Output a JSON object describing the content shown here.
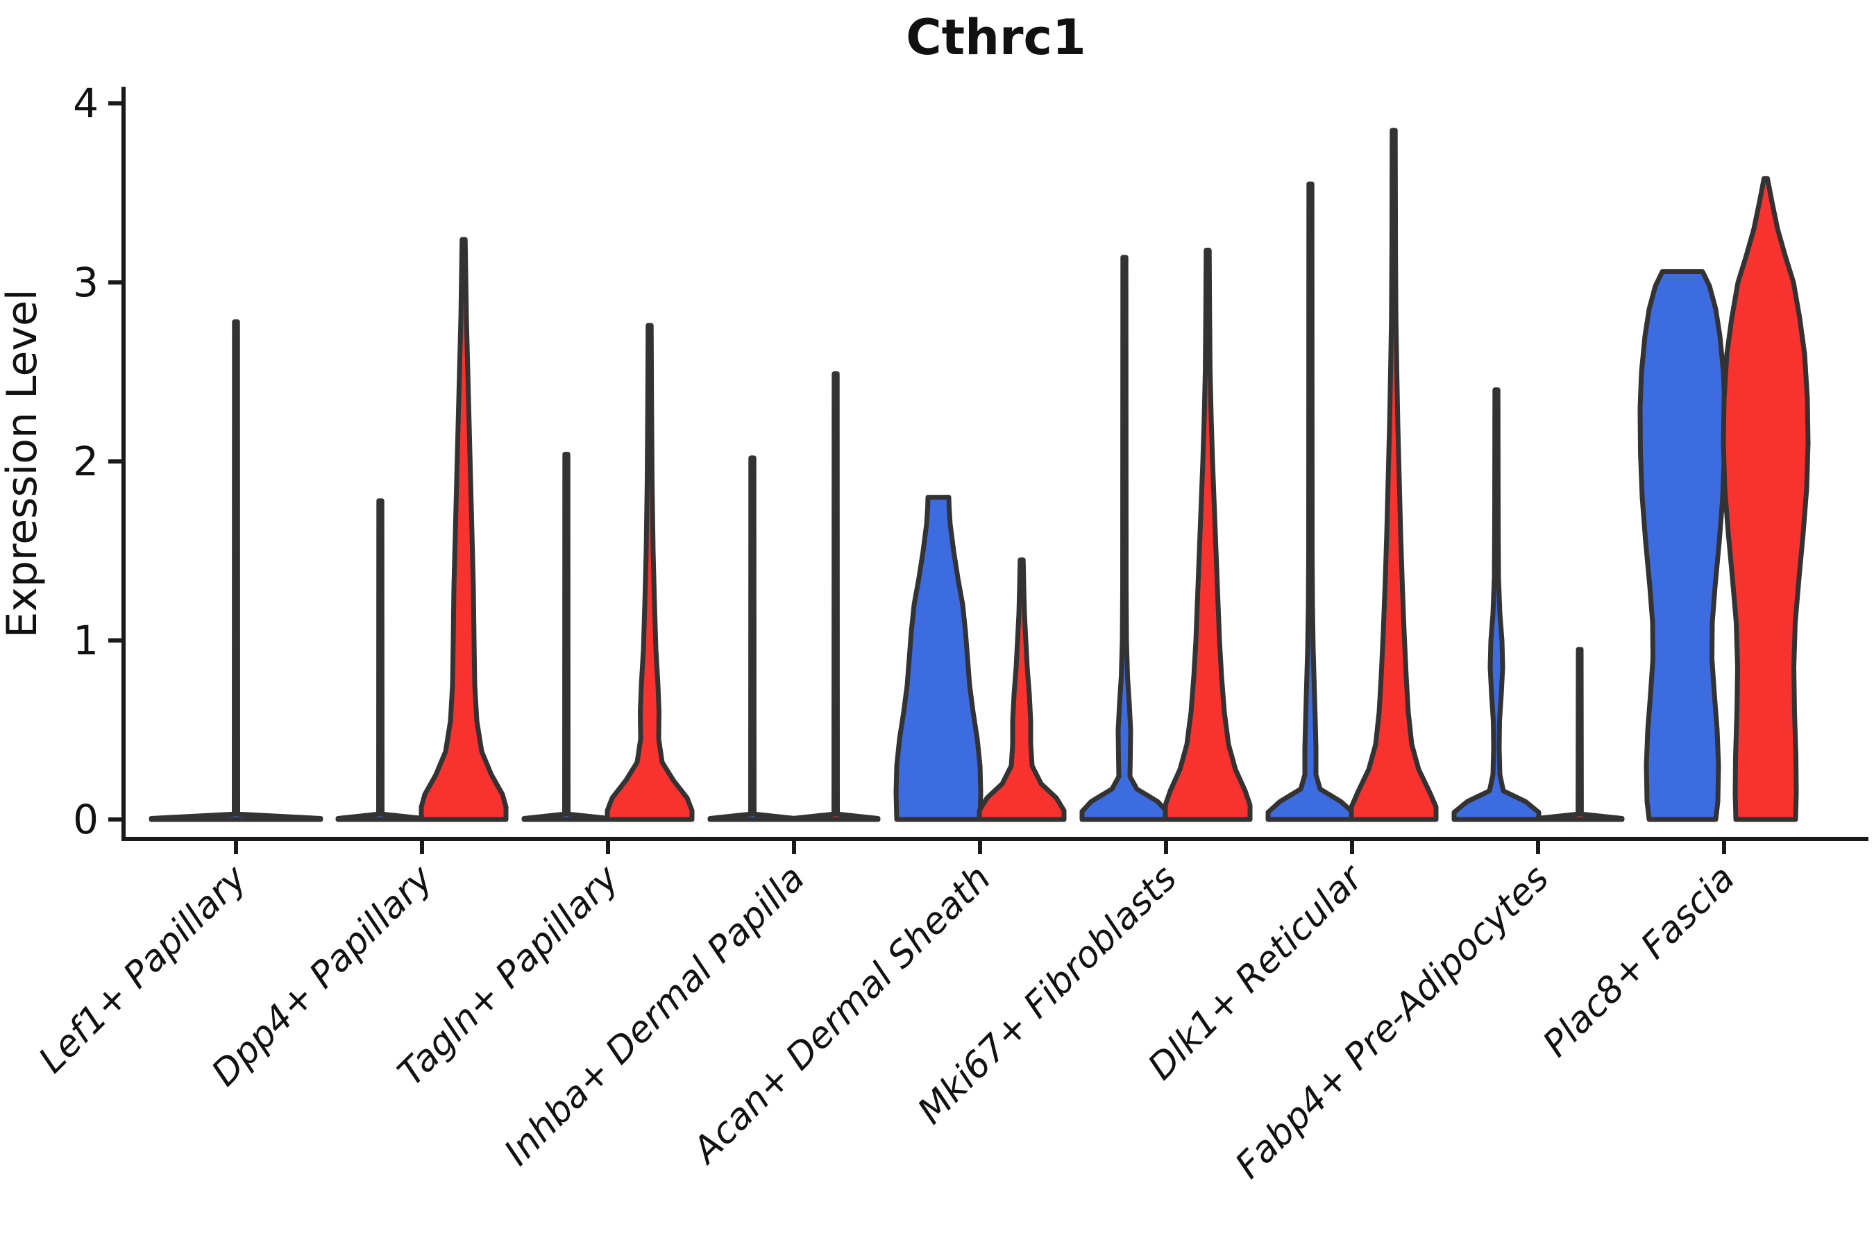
{
  "title": "Cthrc1",
  "ylabel": "Expression Level",
  "colors": {
    "blue": "#3D6BE0",
    "red": "#F8322E",
    "outline": "#333333",
    "axis": "#1a1a1a"
  },
  "axis": {
    "yticks": [
      "0",
      "1",
      "2",
      "3",
      "4"
    ],
    "ylim": [
      0,
      4
    ]
  },
  "chart_data": {
    "type": "violin",
    "title": "Cthrc1",
    "ylabel": "Expression Level",
    "ylim": [
      0,
      4
    ],
    "split_groups": [
      "blue",
      "red"
    ],
    "categories": [
      "Lef1+ Papillary",
      "Dpp4+ Papillary",
      "Tagln+ Papillary",
      "Inhba+ Dermal Papilla",
      "Acan+ Dermal Sheath",
      "Mki67+ Fibroblasts",
      "Dlk1+ Reticular",
      "Fabp4+ Pre-Adipocytes",
      "Plac8+ Fascia"
    ],
    "violins": [
      {
        "category": "Lef1+ Papillary",
        "blue": {
          "max": 2.78,
          "offset": 0,
          "profile": [
            [
              0,
              122
            ],
            [
              0.006,
              122
            ],
            [
              0.03,
              2.5
            ],
            [
              2.78,
              2.2
            ]
          ]
        },
        "red": {
          "kind": "none"
        }
      },
      {
        "category": "Dpp4+ Papillary",
        "blue": {
          "max": 1.78,
          "profile": [
            [
              0,
              61
            ],
            [
              0.006,
              61
            ],
            [
              0.03,
              2.5
            ],
            [
              1.78,
              2.2
            ]
          ]
        },
        "red": {
          "max": 3.24,
          "profile": [
            [
              0,
              61
            ],
            [
              0.07,
              61
            ],
            [
              0.14,
              56
            ],
            [
              0.25,
              40
            ],
            [
              0.38,
              26
            ],
            [
              0.55,
              19
            ],
            [
              0.75,
              16
            ],
            [
              1.0,
              15
            ],
            [
              1.3,
              14
            ],
            [
              1.6,
              12
            ],
            [
              1.9,
              10
            ],
            [
              2.2,
              8
            ],
            [
              2.5,
              6
            ],
            [
              2.8,
              4
            ],
            [
              3.05,
              3
            ],
            [
              3.24,
              2.2
            ]
          ]
        }
      },
      {
        "category": "Tagln+ Papillary",
        "blue": {
          "max": 2.04,
          "profile": [
            [
              0,
              61
            ],
            [
              0.006,
              61
            ],
            [
              0.03,
              2.5
            ],
            [
              2.04,
              2.2
            ]
          ]
        },
        "red": {
          "max": 2.76,
          "profile": [
            [
              0,
              61
            ],
            [
              0.05,
              61
            ],
            [
              0.12,
              54
            ],
            [
              0.22,
              34
            ],
            [
              0.32,
              18
            ],
            [
              0.45,
              13
            ],
            [
              0.6,
              13.5
            ],
            [
              0.75,
              12
            ],
            [
              0.95,
              9
            ],
            [
              1.2,
              7
            ],
            [
              1.5,
              5
            ],
            [
              1.9,
              3.5
            ],
            [
              2.3,
              2.8
            ],
            [
              2.76,
              2.2
            ]
          ]
        }
      },
      {
        "category": "Inhba+ Dermal Papilla",
        "blue": {
          "max": 2.02,
          "profile": [
            [
              0,
              61
            ],
            [
              0.006,
              61
            ],
            [
              0.03,
              2.5
            ],
            [
              2.02,
              2.2
            ]
          ]
        },
        "red": {
          "max": 2.49,
          "profile": [
            [
              0,
              61
            ],
            [
              0.006,
              61
            ],
            [
              0.03,
              2.5
            ],
            [
              2.49,
              2.2
            ]
          ]
        }
      },
      {
        "category": "Acan+ Dermal Sheath",
        "blue": {
          "max": 1.8,
          "profile": [
            [
              0,
              60
            ],
            [
              0.15,
              61
            ],
            [
              0.3,
              60
            ],
            [
              0.45,
              56
            ],
            [
              0.6,
              50
            ],
            [
              0.75,
              45
            ],
            [
              0.9,
              42
            ],
            [
              1.05,
              39
            ],
            [
              1.2,
              35
            ],
            [
              1.35,
              28
            ],
            [
              1.5,
              22
            ],
            [
              1.65,
              17
            ],
            [
              1.74,
              15.5
            ],
            [
              1.8,
              15
            ]
          ]
        },
        "red": {
          "max": 1.45,
          "profile": [
            [
              0,
              61
            ],
            [
              0.05,
              61
            ],
            [
              0.12,
              50
            ],
            [
              0.2,
              28
            ],
            [
              0.3,
              15
            ],
            [
              0.42,
              13
            ],
            [
              0.55,
              13
            ],
            [
              0.7,
              11
            ],
            [
              0.85,
              8
            ],
            [
              1.0,
              6
            ],
            [
              1.15,
              4
            ],
            [
              1.3,
              3
            ],
            [
              1.45,
              2.2
            ]
          ]
        }
      },
      {
        "category": "Mki67+ Fibroblasts",
        "blue": {
          "max": 3.14,
          "profile": [
            [
              0,
              61
            ],
            [
              0.045,
              61
            ],
            [
              0.1,
              48
            ],
            [
              0.17,
              18
            ],
            [
              0.24,
              8
            ],
            [
              0.35,
              8.5
            ],
            [
              0.5,
              9
            ],
            [
              0.65,
              7
            ],
            [
              0.8,
              4.5
            ],
            [
              1.0,
              3
            ],
            [
              1.3,
              2.5
            ],
            [
              3.14,
              2.2
            ]
          ]
        },
        "red": {
          "max": 3.18,
          "profile": [
            [
              0,
              61
            ],
            [
              0.08,
              61
            ],
            [
              0.16,
              54
            ],
            [
              0.28,
              40
            ],
            [
              0.42,
              30
            ],
            [
              0.6,
              24
            ],
            [
              0.8,
              20
            ],
            [
              1.0,
              17
            ],
            [
              1.25,
              14.5
            ],
            [
              1.5,
              12
            ],
            [
              1.75,
              9.5
            ],
            [
              2.0,
              7
            ],
            [
              2.25,
              5
            ],
            [
              2.5,
              3.5
            ],
            [
              2.8,
              2.8
            ],
            [
              3.18,
              2.2
            ]
          ]
        }
      },
      {
        "category": "Dlk1+ Reticular",
        "blue": {
          "max": 3.55,
          "profile": [
            [
              0,
              61
            ],
            [
              0.04,
              61
            ],
            [
              0.1,
              44
            ],
            [
              0.17,
              14
            ],
            [
              0.25,
              8
            ],
            [
              0.4,
              8
            ],
            [
              0.55,
              7
            ],
            [
              0.75,
              5.5
            ],
            [
              0.95,
              4
            ],
            [
              1.2,
              3
            ],
            [
              1.5,
              2.5
            ],
            [
              3.55,
              2.2
            ]
          ]
        },
        "red": {
          "max": 3.85,
          "profile": [
            [
              0,
              61
            ],
            [
              0.07,
              61
            ],
            [
              0.15,
              52
            ],
            [
              0.28,
              36
            ],
            [
              0.42,
              26
            ],
            [
              0.6,
              21
            ],
            [
              0.8,
              18
            ],
            [
              1.05,
              15
            ],
            [
              1.3,
              12.5
            ],
            [
              1.6,
              10
            ],
            [
              1.9,
              8
            ],
            [
              2.2,
              6
            ],
            [
              2.5,
              4.5
            ],
            [
              2.8,
              3.2
            ],
            [
              3.2,
              2.6
            ],
            [
              3.85,
              2.2
            ]
          ]
        }
      },
      {
        "category": "Fabp4+ Pre-Adipocytes",
        "blue": {
          "max": 2.4,
          "profile": [
            [
              0,
              61
            ],
            [
              0.04,
              61
            ],
            [
              0.1,
              42
            ],
            [
              0.16,
              10
            ],
            [
              0.25,
              5
            ],
            [
              0.4,
              4
            ],
            [
              0.55,
              4.5
            ],
            [
              0.7,
              7
            ],
            [
              0.85,
              9
            ],
            [
              1.0,
              8
            ],
            [
              1.15,
              5
            ],
            [
              1.35,
              3
            ],
            [
              1.7,
              2.5
            ],
            [
              2.4,
              2.2
            ]
          ]
        },
        "red": {
          "max": 0.95,
          "profile": [
            [
              0,
              61
            ],
            [
              0.006,
              61
            ],
            [
              0.03,
              2.4
            ],
            [
              0.95,
              2.0
            ]
          ],
          "dots": [
            0.38,
            0.61,
            0.85,
            0.93
          ]
        }
      },
      {
        "category": "Plac8+ Fascia",
        "blue": {
          "max": 3.06,
          "profile": [
            [
              0,
              48
            ],
            [
              0.1,
              51
            ],
            [
              0.3,
              52
            ],
            [
              0.5,
              50
            ],
            [
              0.7,
              46
            ],
            [
              0.9,
              42.5
            ],
            [
              1.1,
              43
            ],
            [
              1.3,
              47
            ],
            [
              1.55,
              53
            ],
            [
              1.8,
              58
            ],
            [
              2.05,
              60.5
            ],
            [
              2.3,
              61
            ],
            [
              2.5,
              59
            ],
            [
              2.7,
              54
            ],
            [
              2.85,
              48
            ],
            [
              2.98,
              39
            ],
            [
              3.06,
              29
            ]
          ]
        },
        "red": {
          "max": 3.58,
          "profile": [
            [
              0,
              43
            ],
            [
              0.15,
              44
            ],
            [
              0.35,
              43.5
            ],
            [
              0.6,
              41.5
            ],
            [
              0.85,
              40.5
            ],
            [
              1.1,
              42.5
            ],
            [
              1.35,
              48
            ],
            [
              1.6,
              54
            ],
            [
              1.85,
              59
            ],
            [
              2.1,
              61
            ],
            [
              2.35,
              60
            ],
            [
              2.6,
              56
            ],
            [
              2.8,
              49
            ],
            [
              3.0,
              40
            ],
            [
              3.15,
              28
            ],
            [
              3.3,
              17
            ],
            [
              3.45,
              9
            ],
            [
              3.58,
              2.5
            ]
          ]
        }
      }
    ]
  }
}
